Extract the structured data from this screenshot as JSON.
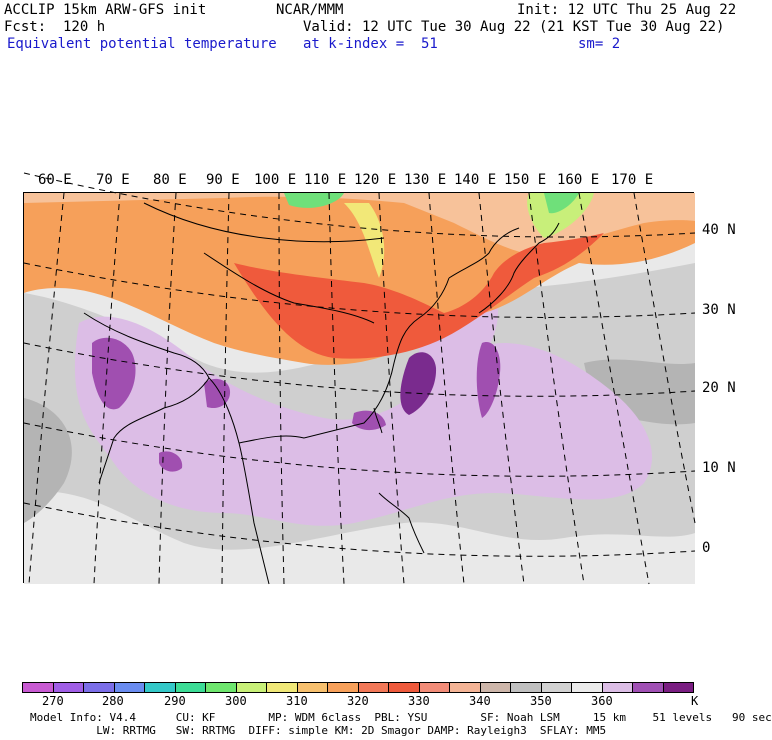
{
  "header": {
    "title": "ACCLIP 15km ARW-GFS init",
    "center": "NCAR/MMM",
    "init": "Init: 12 UTC Thu 25 Aug 22",
    "fcst": "Fcst:  120 h",
    "valid": "Valid: 12 UTC Tue 30 Aug 22 (21 KST Tue 30 Aug 22)",
    "field": "Equivalent potential temperature",
    "level": "at k-index =  51",
    "smooth": "sm= 2"
  },
  "map": {
    "lon_labels": [
      "60 E",
      "70 E",
      "80 E",
      "90 E",
      "100 E",
      "110 E",
      "120 E",
      "130 E",
      "140 E",
      "150 E",
      "160 E",
      "170 E"
    ],
    "lat_labels": [
      "40 N",
      "30 N",
      "20 N",
      "10 N",
      "0"
    ],
    "colors": {
      "background": "#e9e9e9",
      "gray_mid": "#cfcfcf",
      "gray_dark": "#b4b4b4",
      "lavender": "#dcbde6",
      "purple": "#a04fb0",
      "dark_purple": "#7a2b8e",
      "orange": "#f6a05a",
      "red_orange": "#ef5a3c",
      "yellow": "#f2e878",
      "light_green": "#c8ef7a",
      "green": "#6fe07a",
      "peach": "#f7c29a"
    }
  },
  "colorbar": {
    "unit": "K",
    "tick_labels": [
      "270",
      "280",
      "290",
      "300",
      "310",
      "320",
      "330",
      "340",
      "350",
      "360"
    ],
    "colors": [
      "#c85ad2",
      "#a05ee6",
      "#7b6ee8",
      "#6a8cf0",
      "#34c8c8",
      "#3cdc96",
      "#6ee66e",
      "#c8f078",
      "#f0e878",
      "#f7c06e",
      "#f7a05a",
      "#f27858",
      "#ee5a3c",
      "#f28c78",
      "#f4b496",
      "#cdb6aa",
      "#c0c0c0",
      "#d2d2d2",
      "#ebebeb",
      "#dcbee6",
      "#a050b4",
      "#7a1e82"
    ]
  },
  "footer": {
    "line1": "Model Info: V4.4      CU: KF        MP: WDM 6class  PBL: YSU        SF: Noah LSM     15 km    51 levels   90 sec",
    "line2": "          LW: RRTMG   SW: RRTMG  DIFF: simple KM: 2D Smagor DAMP: Rayleigh3  SFLAY: MM5"
  }
}
